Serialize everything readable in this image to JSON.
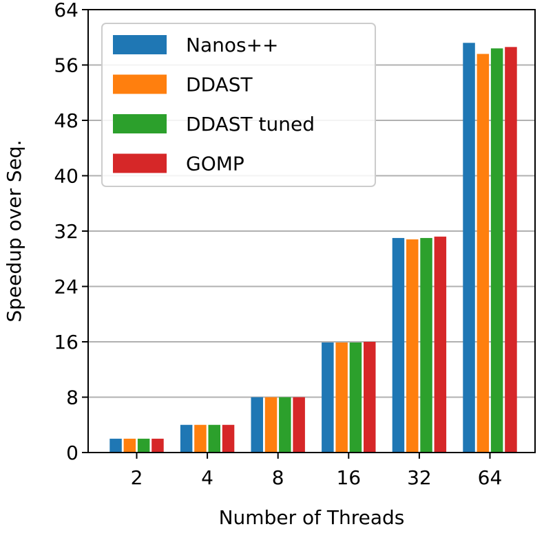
{
  "chart_data": {
    "type": "bar",
    "xlabel": "Number of Threads",
    "ylabel": "Speedup over Seq.",
    "categories": [
      "2",
      "4",
      "8",
      "16",
      "32",
      "64"
    ],
    "ylim": [
      0,
      64
    ],
    "yticks": [
      "0",
      "8",
      "16",
      "24",
      "32",
      "40",
      "48",
      "56",
      "64"
    ],
    "grid": "horizontal",
    "legend_position": "top-left",
    "series": [
      {
        "name": "Nanos++",
        "color": "#1f77b4",
        "values": [
          2.0,
          4.0,
          8.0,
          15.9,
          31.0,
          59.2
        ]
      },
      {
        "name": "DDAST",
        "color": "#ff7f0e",
        "values": [
          2.0,
          4.0,
          8.0,
          15.9,
          30.8,
          57.6
        ]
      },
      {
        "name": "DDAST tuned",
        "color": "#2ca02c",
        "values": [
          2.0,
          4.0,
          8.0,
          15.9,
          31.0,
          58.4
        ]
      },
      {
        "name": "GOMP",
        "color": "#d62728",
        "values": [
          2.0,
          4.0,
          8.0,
          16.0,
          31.2,
          58.6
        ]
      }
    ]
  }
}
